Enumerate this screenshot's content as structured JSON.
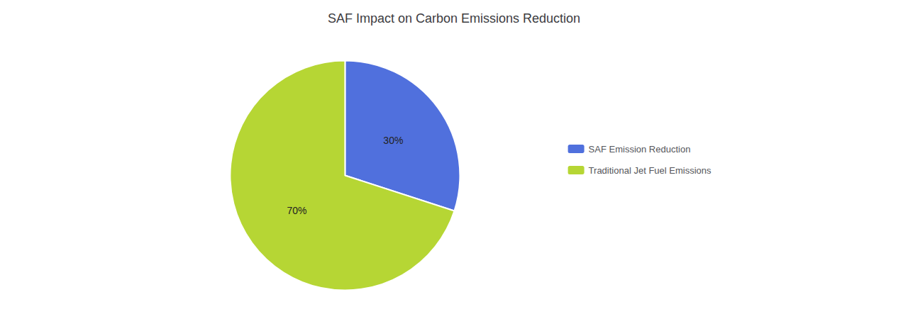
{
  "chart_data": {
    "type": "pie",
    "title": "SAF Impact on Carbon Emissions Reduction",
    "categories": [
      "SAF Emission Reduction",
      "Traditional Jet Fuel Emissions"
    ],
    "values": [
      30,
      70
    ],
    "value_labels": [
      "30%",
      "70%"
    ],
    "data_labels": true,
    "legend": "right"
  }
}
